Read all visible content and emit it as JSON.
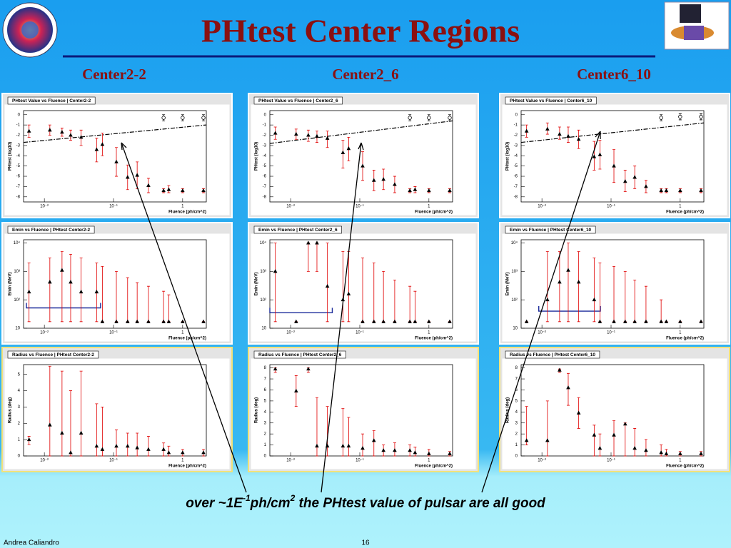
{
  "header": {
    "title": "PHtest Center Regions",
    "subtitles": [
      "Center2-2",
      "Center2_6",
      "Center6_10"
    ]
  },
  "chart_data": [
    {
      "type": "scatter",
      "title": "PHtest Value vs Fluence  |  Center2-2",
      "y_label": "PHtest  (log10)",
      "x_label": "Fluence (ph/cm^2)",
      "log_x": true,
      "log_y": false,
      "color": "#000000",
      "error_color": "#e00000",
      "x": [
        0.006,
        0.012,
        0.018,
        0.024,
        0.034,
        0.057,
        0.069,
        0.11,
        0.16,
        0.22,
        0.32,
        0.53,
        0.63,
        1.0,
        2.0
      ],
      "values": [
        -1.6,
        -1.5,
        -1.7,
        -2.0,
        -2.2,
        -3.4,
        -2.9,
        -4.6,
        -6.1,
        -5.9,
        -6.9,
        -7.4,
        -7.3,
        -7.4,
        -7.4
      ],
      "low": [
        -2.2,
        -2.0,
        -2.1,
        -2.5,
        -3.0,
        -4.6,
        -4.0,
        -6.0,
        -7.3,
        -7.2,
        -7.6,
        -7.6,
        -7.6,
        -7.6,
        -7.6
      ],
      "high": [
        -1.0,
        -1.0,
        -1.3,
        -1.5,
        -1.5,
        -2.3,
        -1.8,
        -3.2,
        -4.9,
        -4.6,
        -6.2,
        -7.2,
        -6.9,
        -7.2,
        -7.2
      ],
      "open_points": {
        "x": [
          0.53,
          1.0,
          2.0
        ],
        "values": [
          -0.3,
          -0.3,
          -0.3
        ],
        "low": [
          -0.6,
          -0.6,
          -0.6
        ],
        "high": [
          0,
          0,
          0
        ]
      },
      "line": {
        "x": [
          0.005,
          2.2
        ],
        "values": [
          -2.7,
          -1.0
        ]
      },
      "xlim": [
        0.005,
        2.2
      ],
      "ylim": [
        -8.5,
        0.4
      ],
      "xticks": [
        {
          "value": 0.01,
          "label": "10⁻²"
        },
        {
          "value": 0.1,
          "label": "10⁻¹"
        },
        1
      ],
      "yticks": [
        0,
        -1,
        -2,
        -3,
        -4,
        -5,
        -6,
        -7,
        -8
      ]
    },
    {
      "type": "scatter",
      "title": "PHtest Value vs Fluence  |  Center2_6",
      "y_label": "PHtest  (log10)",
      "x_label": "Fluence (ph/cm^2)",
      "log_x": true,
      "log_y": false,
      "color": "#000000",
      "error_color": "#e00000",
      "x": [
        0.006,
        0.012,
        0.018,
        0.024,
        0.034,
        0.057,
        0.069,
        0.11,
        0.16,
        0.22,
        0.32,
        0.53,
        0.63,
        1.0,
        2.0
      ],
      "values": [
        -1.8,
        -1.9,
        -2.0,
        -2.1,
        -2.3,
        -3.7,
        -3.3,
        -5.0,
        -6.4,
        -6.3,
        -6.8,
        -7.4,
        -7.3,
        -7.4,
        -7.4
      ],
      "low": [
        -2.4,
        -2.4,
        -2.6,
        -2.7,
        -3.2,
        -5.2,
        -4.5,
        -6.4,
        -7.4,
        -7.3,
        -7.6,
        -7.6,
        -7.6,
        -7.6,
        -7.6
      ],
      "high": [
        -1.2,
        -1.4,
        -1.5,
        -1.6,
        -1.6,
        -2.5,
        -2.2,
        -3.6,
        -5.4,
        -5.3,
        -6.0,
        -7.2,
        -7.0,
        -7.2,
        -7.2
      ],
      "open_points": {
        "x": [
          0.53,
          1.0,
          2.0
        ],
        "values": [
          -0.3,
          -0.3,
          -0.3
        ],
        "low": [
          -0.6,
          -0.6,
          -0.6
        ],
        "high": [
          0,
          0,
          0
        ]
      },
      "line": {
        "x": [
          0.005,
          2.2
        ],
        "values": [
          -2.8,
          -0.6
        ]
      },
      "xlim": [
        0.005,
        2.2
      ],
      "ylim": [
        -8.5,
        0.4
      ],
      "xticks": [
        {
          "value": 0.01,
          "label": "10⁻²"
        },
        {
          "value": 0.1,
          "label": "10⁻¹"
        },
        1
      ],
      "yticks": [
        0,
        -1,
        -2,
        -3,
        -4,
        -5,
        -6,
        -7,
        -8
      ]
    },
    {
      "type": "scatter",
      "title": "PHtest Value vs Fluence  |  Center6_10",
      "y_label": "PHtest  (log10)",
      "x_label": "Fluence (ph/cm^2)",
      "log_x": true,
      "log_y": false,
      "color": "#000000",
      "error_color": "#e00000",
      "x": [
        0.006,
        0.012,
        0.018,
        0.024,
        0.034,
        0.057,
        0.069,
        0.11,
        0.16,
        0.22,
        0.32,
        0.53,
        0.63,
        1.0,
        2.0
      ],
      "values": [
        -1.6,
        -1.4,
        -1.9,
        -2.1,
        -2.4,
        -4.1,
        -3.9,
        -5.0,
        -6.5,
        -6.1,
        -7.0,
        -7.4,
        -7.4,
        -7.4,
        -7.4
      ],
      "low": [
        -2.2,
        -1.9,
        -2.4,
        -2.7,
        -3.3,
        -5.4,
        -5.3,
        -6.6,
        -7.5,
        -7.2,
        -7.6,
        -7.6,
        -7.6,
        -7.6,
        -7.6
      ],
      "high": [
        -1.0,
        -0.8,
        -1.2,
        -1.2,
        -1.5,
        -2.6,
        -2.5,
        -3.4,
        -5.4,
        -5.0,
        -6.4,
        -7.2,
        -7.2,
        -7.2,
        -7.2
      ],
      "open_points": {
        "x": [
          0.53,
          1.0,
          2.0
        ],
        "values": [
          -0.3,
          -0.2,
          -0.2
        ],
        "low": [
          -0.6,
          -0.5,
          -0.5
        ],
        "high": [
          0,
          0.1,
          0.1
        ]
      },
      "line": {
        "x": [
          0.005,
          2.2
        ],
        "values": [
          -2.7,
          -0.8
        ]
      },
      "xlim": [
        0.005,
        2.2
      ],
      "ylim": [
        -8.5,
        0.4
      ],
      "xticks": [
        {
          "value": 0.01,
          "label": "10⁻²"
        },
        {
          "value": 0.1,
          "label": "10⁻¹"
        },
        1
      ],
      "yticks": [
        0,
        -1,
        -2,
        -3,
        -4,
        -5,
        -6,
        -7,
        -8
      ]
    },
    {
      "type": "scatter",
      "title": "Emin vs Fluence  |  PHtest Center2-2",
      "y_label": "Emin (MeV)",
      "x_label": "Fluence (ph/cm^2)",
      "log_x": true,
      "log_y": true,
      "color": "#000000",
      "error_color": "#e00000",
      "x": [
        0.006,
        0.012,
        0.018,
        0.024,
        0.034,
        0.057,
        0.069,
        0.11,
        0.16,
        0.22,
        0.32,
        0.53,
        0.63,
        1.0,
        2.0
      ],
      "values": [
        190,
        420,
        1100,
        420,
        190,
        190,
        17,
        17,
        17,
        17,
        17,
        17,
        17,
        17,
        17
      ],
      "low": [
        17,
        17,
        17,
        17,
        17,
        17,
        17,
        17,
        17,
        17,
        17,
        17,
        17,
        17,
        17
      ],
      "high": [
        2000,
        3000,
        5000,
        4000,
        3000,
        2000,
        1500,
        1000,
        600,
        400,
        300,
        200,
        150,
        17,
        17
      ],
      "range": {
        "x": [
          0.0055,
          0.065
        ],
        "value": 52
      },
      "xlim": [
        0.005,
        2.2
      ],
      "ylim": [
        10,
        13000
      ],
      "xticks": [
        {
          "value": 0.01,
          "label": "10⁻²"
        },
        {
          "value": 0.1,
          "label": "10⁻¹"
        },
        1
      ],
      "yticks": [
        10,
        {
          "value": 100,
          "label": "10²"
        },
        {
          "value": 1000,
          "label": "10³"
        },
        {
          "value": 10000,
          "label": "10⁴"
        }
      ]
    },
    {
      "type": "scatter",
      "title": "Emin vs Fluence  |  PHtest Center2_6",
      "y_label": "Emin (MeV)",
      "x_label": "Fluence (ph/cm^2)",
      "log_x": true,
      "log_y": true,
      "color": "#000000",
      "error_color": "#e00000",
      "x": [
        0.006,
        0.012,
        0.018,
        0.024,
        0.034,
        0.057,
        0.069,
        0.11,
        0.16,
        0.22,
        0.32,
        0.53,
        0.63,
        1.0,
        2.0
      ],
      "values": [
        1000,
        17,
        10000,
        10000,
        300,
        100,
        160,
        17,
        17,
        17,
        17,
        17,
        17,
        17,
        17
      ],
      "low": [
        17,
        17,
        1000,
        1000,
        17,
        17,
        17,
        17,
        17,
        17,
        17,
        17,
        17,
        17,
        17
      ],
      "high": [
        10000,
        17,
        10000,
        10000,
        10000,
        5000,
        5000,
        3000,
        2000,
        1000,
        500,
        300,
        200,
        17,
        17
      ],
      "range": {
        "x": [
          0.005,
          0.04
        ],
        "value": 35
      },
      "xlim": [
        0.005,
        2.2
      ],
      "ylim": [
        10,
        13000
      ],
      "xticks": [
        {
          "value": 0.01,
          "label": "10⁻²"
        },
        {
          "value": 0.1,
          "label": "10⁻¹"
        },
        1
      ],
      "yticks": [
        10,
        {
          "value": 100,
          "label": "10²"
        },
        {
          "value": 1000,
          "label": "10³"
        },
        {
          "value": 10000,
          "label": "10⁴"
        }
      ]
    },
    {
      "type": "scatter",
      "title": "Emin vs Fluence  |  PHtest Center6_10",
      "y_label": "Emin (MeV)",
      "x_label": "Fluence (ph/cm^2)",
      "log_x": true,
      "log_y": true,
      "color": "#000000",
      "error_color": "#e00000",
      "x": [
        0.006,
        0.012,
        0.018,
        0.024,
        0.034,
        0.057,
        0.069,
        0.11,
        0.16,
        0.22,
        0.32,
        0.53,
        0.63,
        1.0,
        2.0
      ],
      "values": [
        17,
        100,
        420,
        1100,
        420,
        100,
        17,
        17,
        17,
        17,
        17,
        17,
        17,
        17,
        17
      ],
      "low": [
        17,
        17,
        17,
        17,
        17,
        17,
        17,
        17,
        17,
        17,
        17,
        17,
        17,
        17,
        17
      ],
      "high": [
        17,
        5000,
        5000,
        10000,
        5000,
        3000,
        2000,
        1500,
        1000,
        500,
        300,
        100,
        17,
        17,
        17
      ],
      "range": {
        "x": [
          0.009,
          0.07
        ],
        "value": 40
      },
      "xlim": [
        0.005,
        2.2
      ],
      "ylim": [
        10,
        13000
      ],
      "xticks": [
        {
          "value": 0.01,
          "label": "10⁻²"
        },
        {
          "value": 0.1,
          "label": "10⁻¹"
        },
        1
      ],
      "yticks": [
        10,
        {
          "value": 100,
          "label": "10²"
        },
        {
          "value": 1000,
          "label": "10³"
        },
        {
          "value": 10000,
          "label": "10⁴"
        }
      ]
    },
    {
      "type": "scatter",
      "title": "Radius vs Fluence  |  PHtest Center2-2",
      "y_label": "Radius (deg)",
      "x_label": "Fluence (ph/cm^2)",
      "log_x": true,
      "log_y": false,
      "color": "#000000",
      "error_color": "#e00000",
      "x": [
        0.006,
        0.012,
        0.018,
        0.024,
        0.034,
        0.057,
        0.069,
        0.11,
        0.16,
        0.22,
        0.32,
        0.53,
        0.63,
        1.0,
        2.0
      ],
      "values": [
        1.0,
        1.9,
        1.4,
        0.2,
        1.4,
        0.6,
        0.4,
        0.6,
        0.6,
        0.5,
        0.4,
        0.4,
        0.2,
        0.2,
        0.2
      ],
      "low": [
        0.7,
        0,
        0,
        0,
        0,
        0,
        0,
        0,
        0,
        0,
        0,
        0,
        0,
        0,
        0
      ],
      "high": [
        1.2,
        5.5,
        5.2,
        4.0,
        5.2,
        3.2,
        3.0,
        1.6,
        1.4,
        1.4,
        1.2,
        0.8,
        0.6,
        0.4,
        0.4
      ],
      "xlim": [
        0.005,
        2.2
      ],
      "ylim": [
        0,
        5.6
      ],
      "xticks": [
        {
          "value": 0.01,
          "label": "10⁻²"
        },
        {
          "value": 0.1,
          "label": "10⁻¹"
        },
        1
      ],
      "yticks": [
        0,
        1,
        2,
        3,
        4,
        5
      ]
    },
    {
      "type": "scatter",
      "title": "Radius vs Fluence  |  PHtest Center2_6",
      "y_label": "Radius (deg)",
      "x_label": "Fluence (ph/cm^2)",
      "log_x": true,
      "log_y": false,
      "color": "#000000",
      "error_color": "#e00000",
      "x": [
        0.006,
        0.012,
        0.018,
        0.024,
        0.034,
        0.057,
        0.069,
        0.11,
        0.16,
        0.22,
        0.32,
        0.53,
        0.63,
        1.0,
        2.0
      ],
      "values": [
        7.9,
        5.9,
        7.9,
        0.9,
        0.9,
        0.9,
        0.9,
        0.7,
        1.4,
        0.5,
        0.5,
        0.5,
        0.3,
        0.2,
        0.2
      ],
      "low": [
        7.6,
        4.5,
        7.6,
        0,
        0,
        0,
        0,
        0,
        0,
        0,
        0,
        0,
        0,
        0,
        0
      ],
      "high": [
        8.0,
        7.3,
        8.0,
        5.3,
        4.5,
        4.3,
        3.5,
        2.0,
        2.3,
        1.0,
        1.2,
        1.0,
        0.8,
        0.6,
        0.4
      ],
      "xlim": [
        0.005,
        2.2
      ],
      "ylim": [
        0,
        8.3
      ],
      "xticks": [
        {
          "value": 0.01,
          "label": "10⁻²"
        },
        {
          "value": 0.1,
          "label": "10⁻¹"
        },
        1
      ],
      "yticks": [
        0,
        1,
        2,
        3,
        4,
        5,
        6,
        7,
        8
      ]
    },
    {
      "type": "scatter",
      "title": "Radius vs Fluence  |  PHtest Center6_10",
      "y_label": "Radius (deg)",
      "x_label": "Fluence (ph/cm^2)",
      "log_x": true,
      "log_y": false,
      "color": "#000000",
      "error_color": "#e00000",
      "x": [
        0.006,
        0.012,
        0.018,
        0.024,
        0.034,
        0.057,
        0.069,
        0.11,
        0.16,
        0.22,
        0.32,
        0.53,
        0.63,
        1.0,
        2.0
      ],
      "values": [
        1.4,
        1.4,
        7.8,
        6.2,
        3.9,
        1.9,
        0.7,
        1.9,
        2.9,
        0.7,
        0.5,
        0.3,
        0.2,
        0.2,
        0.2
      ],
      "low": [
        1.0,
        0,
        7.6,
        4.6,
        2.5,
        0,
        0,
        0,
        0,
        0,
        0,
        0,
        0,
        0,
        0
      ],
      "high": [
        4.5,
        5.0,
        7.9,
        7.5,
        5.3,
        2.8,
        2.0,
        3.2,
        3.0,
        2.5,
        1.5,
        1.0,
        0.6,
        0.4,
        0.4
      ],
      "xlim": [
        0.005,
        2.2
      ],
      "ylim": [
        0,
        8.3
      ],
      "xticks": [
        {
          "value": 0.01,
          "label": "10⁻²"
        },
        {
          "value": 0.1,
          "label": "10⁻¹"
        },
        1
      ],
      "yticks": [
        0,
        1,
        2,
        3,
        4,
        5,
        6,
        7,
        8
      ]
    }
  ],
  "caption": {
    "parts": [
      "over ~1E",
      "-1",
      "ph/cm",
      "2",
      " the PHtest value of pulsar are all good"
    ]
  },
  "footer": {
    "author": "Andrea Caliandro",
    "page": "16"
  }
}
